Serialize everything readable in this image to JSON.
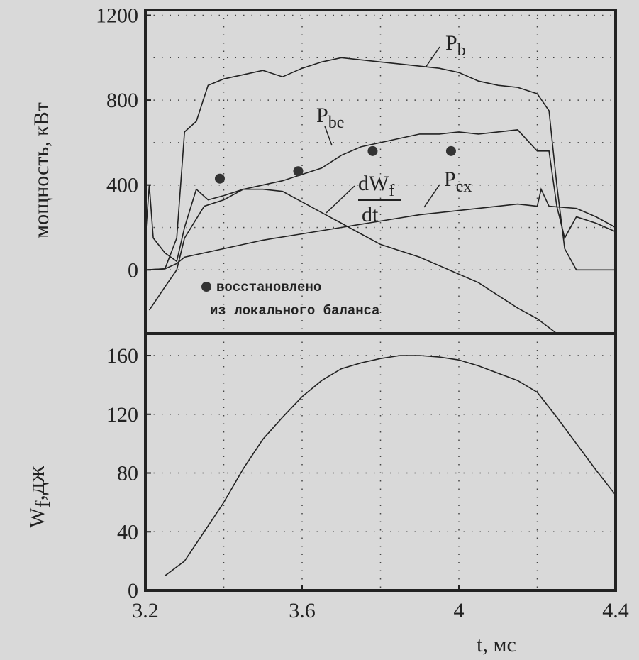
{
  "chart_data": [
    {
      "type": "line",
      "ylabel": "мощность, кВт",
      "xlim": [
        3.2,
        4.4
      ],
      "ylim": [
        -300,
        1225
      ],
      "yticks": [
        0,
        400,
        800,
        1200
      ],
      "minor_yticks": [
        200,
        600,
        1000
      ],
      "xgrid": [
        3.4,
        3.6,
        3.8,
        4,
        4.2
      ],
      "grid": true,
      "series": [
        {
          "name": "P",
          "subscript": "b",
          "color": "#222",
          "x": [
            3.2,
            3.25,
            3.28,
            3.3,
            3.33,
            3.36,
            3.4,
            3.45,
            3.5,
            3.55,
            3.6,
            3.65,
            3.7,
            3.75,
            3.8,
            3.85,
            3.9,
            3.95,
            4.0,
            4.05,
            4.1,
            4.15,
            4.2,
            4.23,
            4.25,
            4.27,
            4.3,
            4.35,
            4.4
          ],
          "values": [
            0,
            5,
            150,
            650,
            700,
            870,
            900,
            920,
            940,
            910,
            950,
            980,
            1000,
            990,
            980,
            970,
            960,
            950,
            930,
            890,
            870,
            860,
            830,
            750,
            400,
            100,
            0,
            0,
            0
          ]
        },
        {
          "name": "P",
          "subscript": "be",
          "color": "#222",
          "x": [
            3.21,
            3.25,
            3.28,
            3.3,
            3.35,
            3.4,
            3.45,
            3.5,
            3.55,
            3.6,
            3.65,
            3.7,
            3.75,
            3.8,
            3.85,
            3.9,
            3.95,
            4.0,
            4.05,
            4.1,
            4.15,
            4.2,
            4.23,
            4.25,
            4.27,
            4.3,
            4.35,
            4.4
          ],
          "values": [
            -190,
            -80,
            0,
            150,
            300,
            330,
            380,
            400,
            420,
            450,
            480,
            540,
            580,
            600,
            620,
            640,
            640,
            650,
            640,
            650,
            660,
            560,
            560,
            300,
            150,
            250,
            220,
            180
          ]
        },
        {
          "name": "dW",
          "subscript": "f",
          "denominator": "dt",
          "color": "#222",
          "x": [
            3.2,
            3.21,
            3.22,
            3.25,
            3.28,
            3.3,
            3.33,
            3.36,
            3.4,
            3.45,
            3.5,
            3.55,
            3.6,
            3.65,
            3.7,
            3.75,
            3.8,
            3.85,
            3.9,
            3.95,
            4.0,
            4.05,
            4.1,
            4.15,
            4.2,
            4.25
          ],
          "values": [
            150,
            400,
            150,
            80,
            40,
            200,
            380,
            330,
            350,
            380,
            380,
            370,
            320,
            270,
            220,
            170,
            120,
            90,
            60,
            20,
            -20,
            -60,
            -120,
            -180,
            -230,
            -300
          ]
        },
        {
          "name": "P",
          "subscript": "ex",
          "color": "#222",
          "x": [
            3.2,
            3.25,
            3.28,
            3.3,
            3.4,
            3.5,
            3.6,
            3.7,
            3.8,
            3.9,
            4.0,
            4.1,
            4.15,
            4.2,
            4.21,
            4.23,
            4.3,
            4.35,
            4.4
          ],
          "values": [
            0,
            5,
            30,
            60,
            100,
            140,
            170,
            200,
            230,
            260,
            280,
            300,
            310,
            300,
            380,
            300,
            290,
            250,
            200
          ]
        }
      ],
      "points": {
        "x": [
          3.39,
          3.59,
          3.78,
          3.98
        ],
        "values": [
          430,
          465,
          560,
          560
        ],
        "color": "#333"
      },
      "note": [
        "восстановлено",
        "из локального баланса"
      ]
    },
    {
      "type": "line",
      "ylabel": "W",
      "ylabel_sub": "f",
      "ylabel_rest": ",дж",
      "xlabel": "t, мс",
      "xlim": [
        3.2,
        4.4
      ],
      "ylim": [
        0,
        175
      ],
      "xticks": [
        3.2,
        3.6,
        4,
        4.4
      ],
      "yticks": [
        0,
        40,
        80,
        120,
        160
      ],
      "xgrid": [
        3.4,
        3.6,
        3.8,
        4,
        4.2
      ],
      "grid": true,
      "series": [
        {
          "color": "#222",
          "x": [
            3.25,
            3.3,
            3.35,
            3.4,
            3.45,
            3.5,
            3.55,
            3.6,
            3.65,
            3.7,
            3.75,
            3.8,
            3.85,
            3.9,
            3.95,
            4.0,
            4.05,
            4.1,
            4.15,
            4.2,
            4.25,
            4.3,
            4.35,
            4.4
          ],
          "values": [
            10,
            20,
            40,
            60,
            83,
            103,
            118,
            132,
            143,
            151,
            155,
            158,
            160,
            160,
            159,
            157,
            153,
            148,
            143,
            135,
            118,
            100,
            82,
            65
          ]
        }
      ]
    }
  ]
}
